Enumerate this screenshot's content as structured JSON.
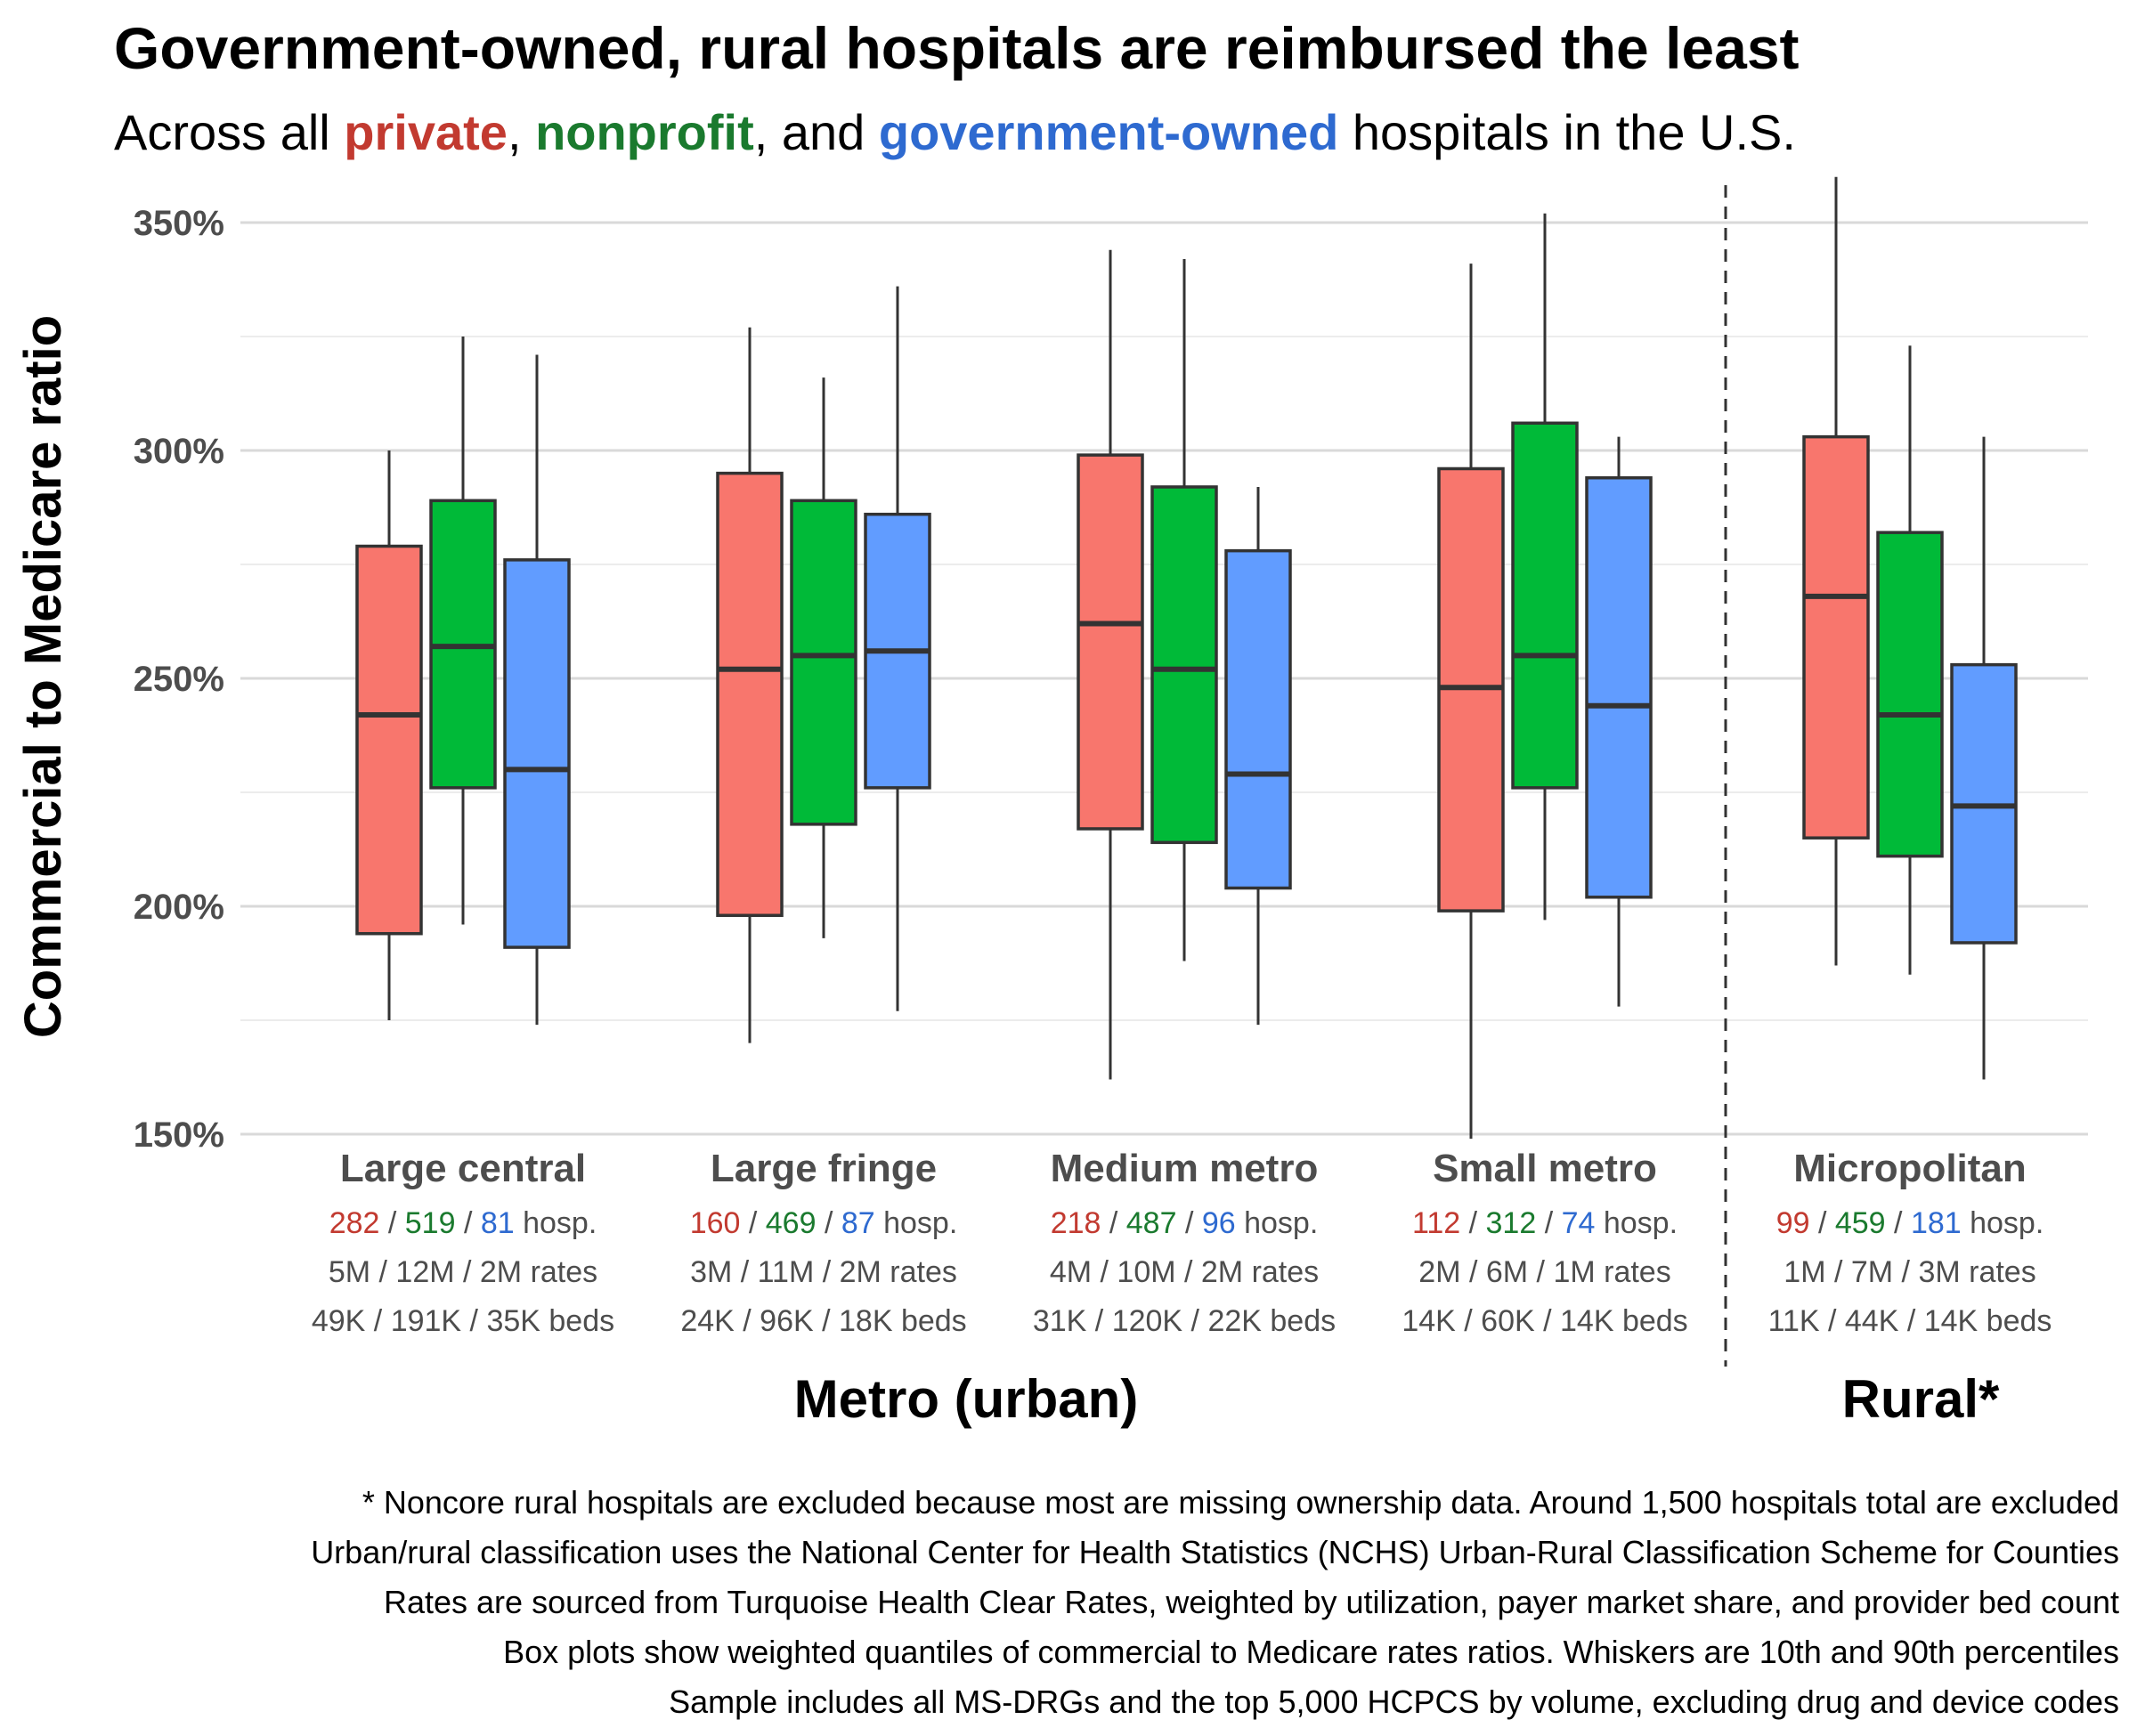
{
  "title": "Government-owned, rural hospitals are reimbursed the least",
  "subtitle": {
    "prefix": "Across all ",
    "private": "private",
    "sep1": ", ",
    "nonprofit": "nonprofit",
    "sep2": ", and ",
    "government": "government-owned",
    "suffix": " hospitals in the U.S."
  },
  "colors": {
    "private_fill": "#f8766d",
    "nonprofit_fill": "#00ba38",
    "government_fill": "#619cff",
    "private_text": "#c23a30",
    "nonprofit_text": "#1a7a2e",
    "government_text": "#2e6ad0",
    "box_stroke": "#333333",
    "grid": "#d9d9d9",
    "axis_text": "#4d4d4d"
  },
  "chart_data": {
    "type": "boxplot",
    "ylabel": "Commercial to Medicare ratio",
    "ylim": [
      150,
      360
    ],
    "yticks": [
      150,
      200,
      250,
      300,
      350
    ],
    "ytick_labels": [
      "150%",
      "200%",
      "250%",
      "300%",
      "350%"
    ],
    "series": [
      "private",
      "nonprofit",
      "government-owned"
    ],
    "groups": [
      {
        "name": "Large central",
        "region": "metro",
        "hosp": [
          "282",
          "519",
          "81"
        ],
        "hosp_unit": "hosp.",
        "rates": [
          "5M",
          "12M",
          "2M"
        ],
        "rates_unit": "rates",
        "beds": [
          "49K",
          "191K",
          "35K"
        ],
        "beds_unit": "beds",
        "boxes": [
          {
            "series": "private",
            "p10": 175,
            "q1": 194,
            "median": 242,
            "q3": 279,
            "p90": 300
          },
          {
            "series": "nonprofit",
            "p10": 196,
            "q1": 226,
            "median": 257,
            "q3": 289,
            "p90": 325
          },
          {
            "series": "government-owned",
            "p10": 174,
            "q1": 191,
            "median": 230,
            "q3": 276,
            "p90": 321
          }
        ]
      },
      {
        "name": "Large fringe",
        "region": "metro",
        "hosp": [
          "160",
          "469",
          "87"
        ],
        "hosp_unit": "hosp.",
        "rates": [
          "3M",
          "11M",
          "2M"
        ],
        "rates_unit": "rates",
        "beds": [
          "24K",
          "96K",
          "18K"
        ],
        "beds_unit": "beds",
        "boxes": [
          {
            "series": "private",
            "p10": 170,
            "q1": 198,
            "median": 252,
            "q3": 295,
            "p90": 327
          },
          {
            "series": "nonprofit",
            "p10": 193,
            "q1": 218,
            "median": 255,
            "q3": 289,
            "p90": 316
          },
          {
            "series": "government-owned",
            "p10": 177,
            "q1": 226,
            "median": 256,
            "q3": 286,
            "p90": 336
          }
        ]
      },
      {
        "name": "Medium metro",
        "region": "metro",
        "hosp": [
          "218",
          "487",
          "96"
        ],
        "hosp_unit": "hosp.",
        "rates": [
          "4M",
          "10M",
          "2M"
        ],
        "rates_unit": "rates",
        "beds": [
          "31K",
          "120K",
          "22K"
        ],
        "beds_unit": "beds",
        "boxes": [
          {
            "series": "private",
            "p10": 162,
            "q1": 217,
            "median": 262,
            "q3": 299,
            "p90": 344
          },
          {
            "series": "nonprofit",
            "p10": 188,
            "q1": 214,
            "median": 252,
            "q3": 292,
            "p90": 342
          },
          {
            "series": "government-owned",
            "p10": 174,
            "q1": 204,
            "median": 229,
            "q3": 278,
            "p90": 292
          }
        ]
      },
      {
        "name": "Small metro",
        "region": "metro",
        "hosp": [
          "112",
          "312",
          "74"
        ],
        "hosp_unit": "hosp.",
        "rates": [
          "2M",
          "6M",
          "1M"
        ],
        "rates_unit": "rates",
        "beds": [
          "14K",
          "60K",
          "14K"
        ],
        "beds_unit": "beds",
        "boxes": [
          {
            "series": "private",
            "p10": 149,
            "q1": 199,
            "median": 248,
            "q3": 296,
            "p90": 341
          },
          {
            "series": "nonprofit",
            "p10": 197,
            "q1": 226,
            "median": 255,
            "q3": 306,
            "p90": 352
          },
          {
            "series": "government-owned",
            "p10": 178,
            "q1": 202,
            "median": 244,
            "q3": 294,
            "p90": 303
          }
        ]
      },
      {
        "name": "Micropolitan",
        "region": "rural",
        "hosp": [
          "99",
          "459",
          "181"
        ],
        "hosp_unit": "hosp.",
        "rates": [
          "1M",
          "7M",
          "3M"
        ],
        "rates_unit": "rates",
        "beds": [
          "11K",
          "44K",
          "14K"
        ],
        "beds_unit": "beds",
        "boxes": [
          {
            "series": "private",
            "p10": 187,
            "q1": 215,
            "median": 268,
            "q3": 303,
            "p90": 360
          },
          {
            "series": "nonprofit",
            "p10": 185,
            "q1": 211,
            "median": 242,
            "q3": 282,
            "p90": 323
          },
          {
            "series": "government-owned",
            "p10": 162,
            "q1": 192,
            "median": 222,
            "q3": 253,
            "p90": 303
          }
        ]
      }
    ],
    "region_labels": {
      "metro": "Metro (urban)",
      "rural": "Rural*"
    }
  },
  "footnotes": [
    "* Noncore rural hospitals are excluded because most are missing ownership data. Around 1,500 hospitals total are excluded",
    "Urban/rural classification uses the National Center for Health Statistics (NCHS) Urban-Rural Classification Scheme for Counties",
    "Rates are sourced from Turquoise Health Clear Rates, weighted by utilization, payer market share, and provider bed count",
    "Box plots show weighted quantiles of commercial to Medicare rates ratios. Whiskers are 10th and 90th percentiles",
    "Sample includes all MS-DRGs and the top 5,000 HCPCS by volume, excluding drug and device codes"
  ]
}
